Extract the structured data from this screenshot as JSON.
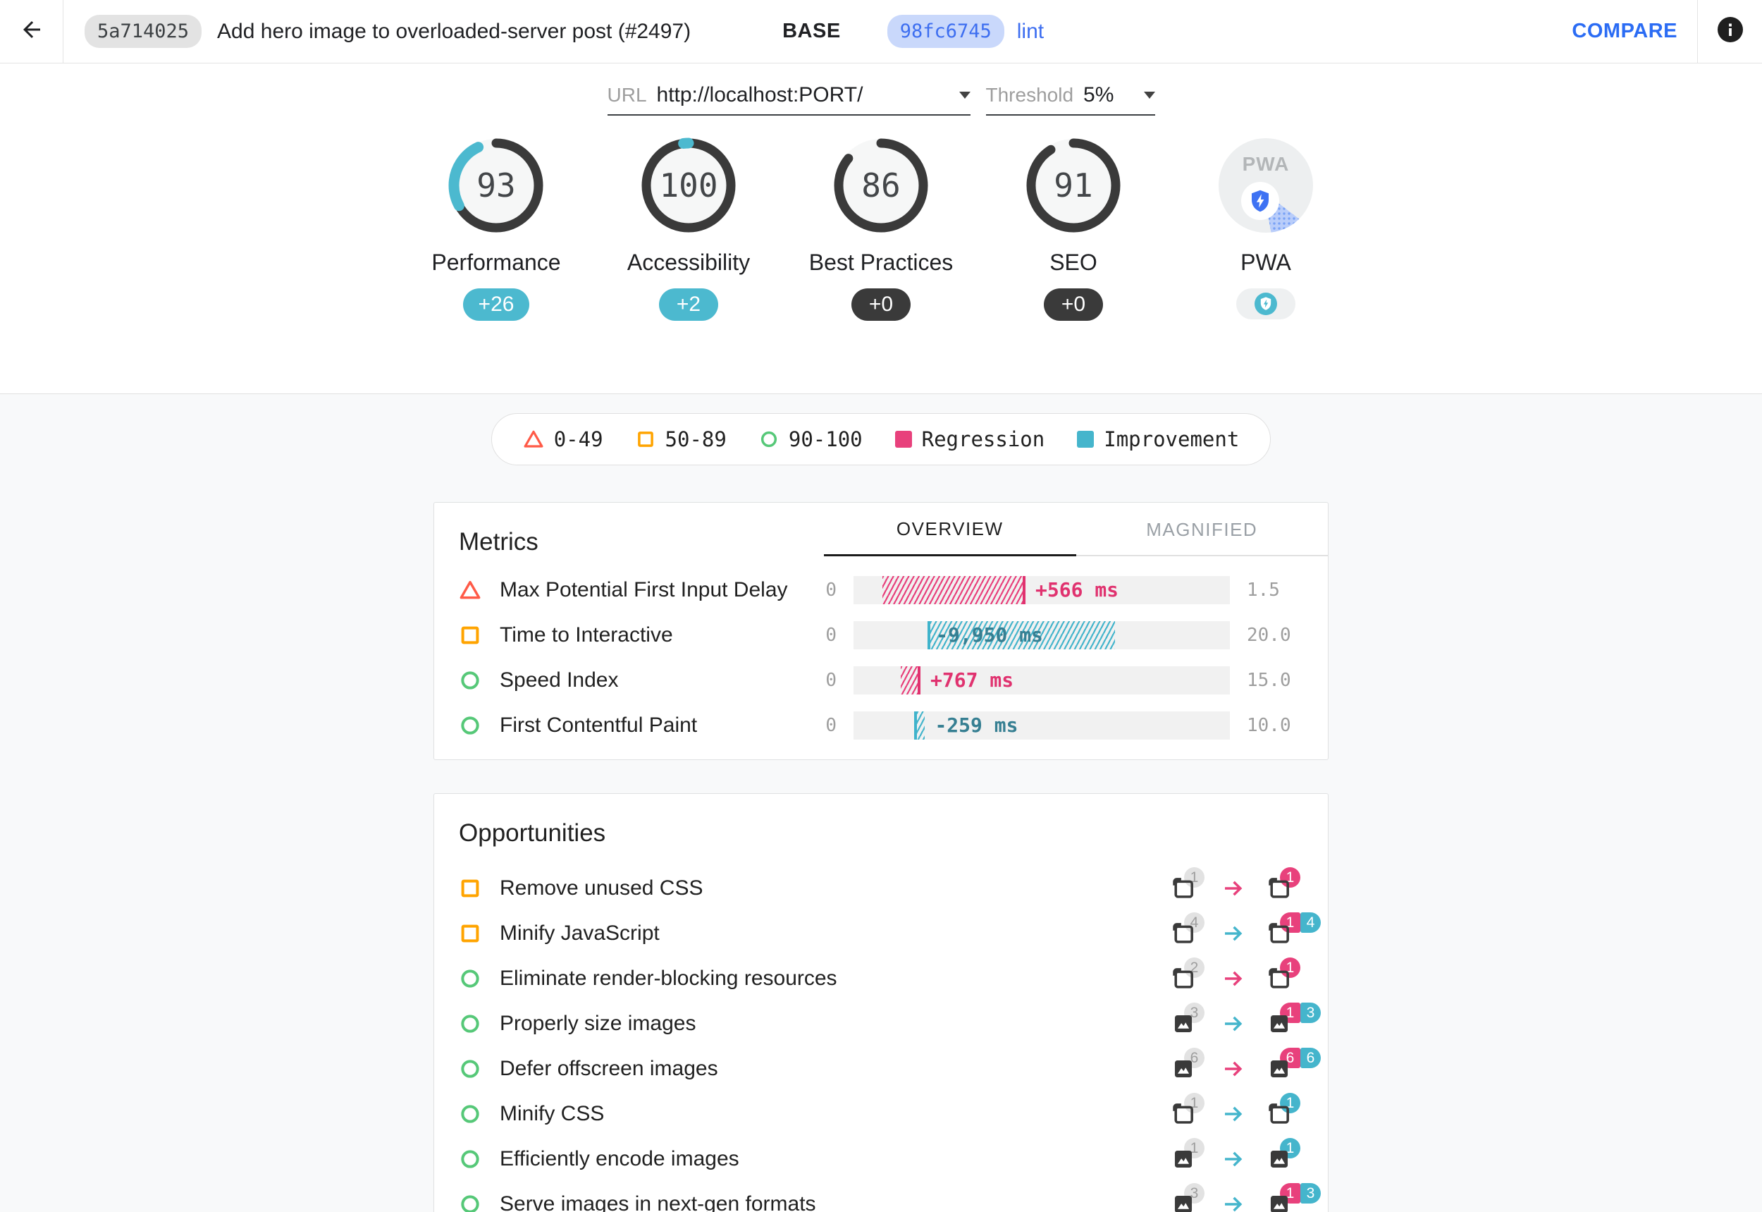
{
  "header": {
    "base_hash": "5a714025",
    "title": "Add hero image to overloaded-server post (#2497)",
    "base_label": "BASE",
    "compare_hash": "98fc6745",
    "compare_branch": "lint",
    "compare_button": "COMPARE"
  },
  "filters": {
    "url_label": "URL",
    "url_value": "http://localhost:PORT/",
    "threshold_label": "Threshold",
    "threshold_value": "5%"
  },
  "scores": [
    {
      "id": "performance",
      "label": "Performance",
      "value": 93,
      "delta": 26,
      "delta_label": "+26",
      "delta_style": "improvement"
    },
    {
      "id": "accessibility",
      "label": "Accessibility",
      "value": 100,
      "delta": 2,
      "delta_label": "+2",
      "delta_style": "improvement"
    },
    {
      "id": "best-practices",
      "label": "Best Practices",
      "value": 86,
      "delta": 0,
      "delta_label": "+0",
      "delta_style": "neutral"
    },
    {
      "id": "seo",
      "label": "SEO",
      "value": 91,
      "delta": 0,
      "delta_label": "+0",
      "delta_style": "neutral"
    },
    {
      "id": "pwa",
      "label": "PWA",
      "value": null,
      "delta": null,
      "delta_label": "",
      "delta_style": "pwa-badge",
      "logo_text": "PWA"
    }
  ],
  "legend": [
    {
      "glyph": "triangle-outline",
      "color": "#ff5a47",
      "label": "0-49"
    },
    {
      "glyph": "square-outline",
      "color": "#ffa400",
      "label": "50-89"
    },
    {
      "glyph": "circle-outline",
      "color": "#56c878",
      "label": "90-100"
    },
    {
      "glyph": "square-fill",
      "color": "#e8417c",
      "label": "Regression"
    },
    {
      "glyph": "square-fill",
      "color": "#45b5cc",
      "label": "Improvement"
    }
  ],
  "metrics": {
    "title": "Metrics",
    "tabs": [
      "OVERVIEW",
      "MAGNIFIED"
    ],
    "rows": [
      {
        "severity": "fail",
        "label": "Max Potential First Input Delay",
        "min": "0",
        "max": "1.5",
        "delta_label": "+566 ms",
        "direction": "regression",
        "bar_start_pct": 7.7,
        "bar_width_pct": 38.0,
        "value_inside": false
      },
      {
        "severity": "average",
        "label": "Time to Interactive",
        "min": "0",
        "max": "20.0",
        "delta_label": "-9,950 ms",
        "direction": "improvement",
        "bar_start_pct": 19.7,
        "bar_width_pct": 49.7,
        "value_inside": true
      },
      {
        "severity": "pass",
        "label": "Speed Index",
        "min": "0",
        "max": "15.0",
        "delta_label": "+767 ms",
        "direction": "regression",
        "bar_start_pct": 12.5,
        "bar_width_pct": 5.3,
        "value_inside": false
      },
      {
        "severity": "pass",
        "label": "First Contentful Paint",
        "min": "0",
        "max": "10.0",
        "delta_label": "-259 ms",
        "direction": "improvement",
        "bar_start_pct": 16.1,
        "bar_width_pct": 2.9,
        "value_inside": false
      }
    ]
  },
  "opportunities": {
    "title": "Opportunities",
    "rows": [
      {
        "severity": "average",
        "label": "Remove unused CSS",
        "resource": "page",
        "base_count": "1",
        "arrow": "regression",
        "compare_badges": [
          {
            "style": "regression",
            "value": "1"
          }
        ]
      },
      {
        "severity": "average",
        "label": "Minify JavaScript",
        "resource": "page",
        "base_count": "4",
        "arrow": "improvement",
        "compare_badges": [
          {
            "style": "regression",
            "value": "1"
          },
          {
            "style": "improvement",
            "value": "4"
          }
        ]
      },
      {
        "severity": "pass",
        "label": "Eliminate render-blocking resources",
        "resource": "page",
        "base_count": "2",
        "arrow": "regression",
        "compare_badges": [
          {
            "style": "regression",
            "value": "1"
          }
        ]
      },
      {
        "severity": "pass",
        "label": "Properly size images",
        "resource": "image",
        "base_count": "3",
        "arrow": "improvement",
        "compare_badges": [
          {
            "style": "regression",
            "value": "1"
          },
          {
            "style": "improvement",
            "value": "3"
          }
        ]
      },
      {
        "severity": "pass",
        "label": "Defer offscreen images",
        "resource": "image",
        "base_count": "6",
        "arrow": "regression",
        "compare_badges": [
          {
            "style": "regression",
            "value": "6"
          },
          {
            "style": "improvement",
            "value": "6"
          }
        ]
      },
      {
        "severity": "pass",
        "label": "Minify CSS",
        "resource": "page",
        "base_count": "1",
        "arrow": "improvement",
        "compare_badges": [
          {
            "style": "improvement",
            "value": "1"
          }
        ]
      },
      {
        "severity": "pass",
        "label": "Efficiently encode images",
        "resource": "image",
        "base_count": "1",
        "arrow": "improvement",
        "compare_badges": [
          {
            "style": "improvement",
            "value": "1"
          }
        ]
      },
      {
        "severity": "pass",
        "label": "Serve images in next-gen formats",
        "resource": "image",
        "base_count": "3",
        "arrow": "improvement",
        "compare_badges": [
          {
            "style": "regression",
            "value": "1"
          },
          {
            "style": "improvement",
            "value": "3"
          }
        ]
      }
    ]
  },
  "colors": {
    "regression": "#e8417c",
    "improvement": "#45b5cc",
    "improvement_badge": "#4cb9cf",
    "neutral_dark": "#3a3a3a",
    "fail": "#ff5a47",
    "average": "#ffa400",
    "pass": "#56c878",
    "link_blue": "#3d6ef0",
    "gauge_ring": "#3a3a3a",
    "gauge_delta": "#4cb9cf",
    "pwa_blue": "#3e72f3"
  }
}
